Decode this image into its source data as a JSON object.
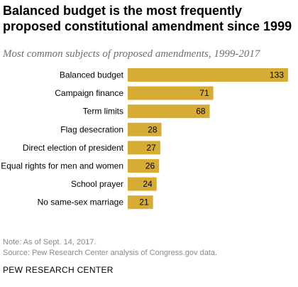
{
  "title": "Balanced budget is the most frequently proposed constitutional amendment since 1999",
  "subtitle": "Most common subjects of proposed amendments, 1999-2017",
  "note": "Note: As of Sept. 14, 2017.",
  "source": "Source: Pew Research Center analysis of Congress.gov data.",
  "brand": "PEW RESEARCH CENTER",
  "colors": {
    "bar": "#d6ac35",
    "label": "#000000"
  },
  "chart_data": {
    "type": "bar",
    "orientation": "horizontal",
    "categories": [
      "Balanced budget",
      "Campaign finance",
      "Term limits",
      "Flag desecration",
      "Direct election of president",
      "Equal rights for men and women",
      "School prayer",
      "No same-sex marriage"
    ],
    "values": [
      133,
      71,
      68,
      28,
      27,
      26,
      24,
      21
    ],
    "data_labels": [
      "133",
      "71",
      "68",
      "28",
      "27",
      "26",
      "24",
      "21"
    ],
    "xlim": [
      0,
      133
    ],
    "grid": false,
    "legend": "none"
  }
}
